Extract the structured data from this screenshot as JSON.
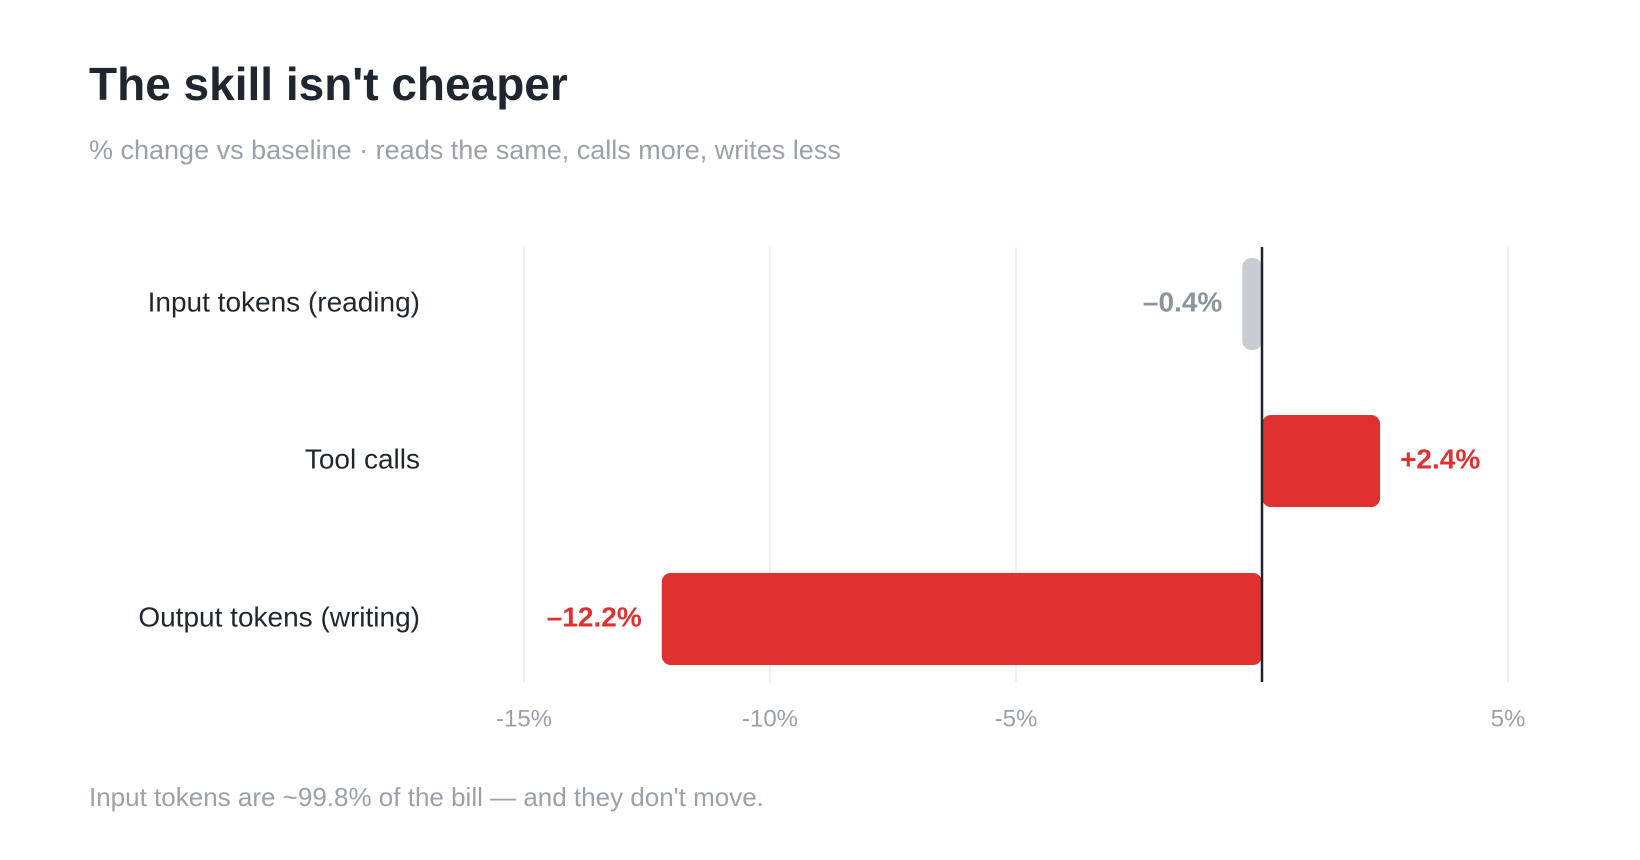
{
  "chart_data": {
    "type": "hbar",
    "title": "The skill isn't cheaper",
    "subtitle": "% change vs baseline · reads the same, calls more, writes less",
    "footnote": "Input tokens are ~99.8% of the bill — and they don't move.",
    "categories": [
      "Input tokens (reading)",
      "Tool calls",
      "Output tokens (writing)"
    ],
    "values": [
      -0.4,
      2.4,
      -12.2
    ],
    "value_labels": [
      "–0.4%",
      "+2.4%",
      "–12.2%"
    ],
    "colors": [
      "#c9cdd2",
      "#e03131",
      "#e03131"
    ],
    "label_colors": [
      "#8b939c",
      "#e03131",
      "#e03131"
    ],
    "xlim": [
      -15,
      5
    ],
    "xticks": [
      {
        "value": -15,
        "label": "-15%"
      },
      {
        "value": -10,
        "label": "-10%"
      },
      {
        "value": -5,
        "label": "-5%"
      },
      {
        "value": 5,
        "label": "5%"
      }
    ],
    "grid": true
  }
}
